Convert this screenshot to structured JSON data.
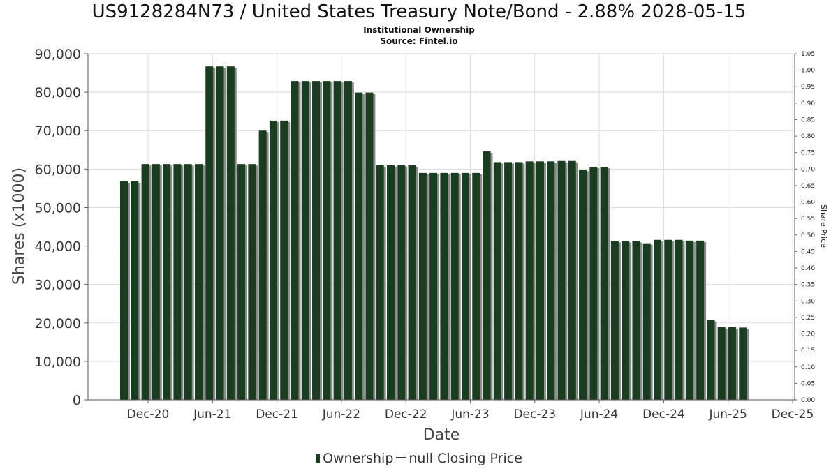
{
  "chart_data": {
    "type": "bar",
    "title": "US9128284N73 / United States Treasury Note/Bond - 2.88% 2028-05-15",
    "subtitle": "Institutional Ownership",
    "source": "Source: Fintel.io",
    "xlabel": "Date",
    "ylabel": "Shares (x1000)",
    "ylabel_right": "Share Price",
    "ylim": [
      0,
      90000
    ],
    "ylim_right": [
      0,
      1.05
    ],
    "y_ticks": [
      "0",
      "10,000",
      "20,000",
      "30,000",
      "40,000",
      "50,000",
      "60,000",
      "70,000",
      "80,000",
      "90,000"
    ],
    "y_right_ticks": [
      "0.00",
      "0.05",
      "0.10",
      "0.15",
      "0.20",
      "0.25",
      "0.30",
      "0.35",
      "0.40",
      "0.45",
      "0.50",
      "0.55",
      "0.60",
      "0.65",
      "0.70",
      "0.75",
      "0.80",
      "0.85",
      "0.90",
      "0.95",
      "1.00",
      "1.05"
    ],
    "x_ticks": [
      "Dec-20",
      "Jun-21",
      "Dec-21",
      "Jun-22",
      "Dec-22",
      "Jun-23",
      "Dec-23",
      "Jun-24",
      "Dec-24",
      "Jun-25",
      "Dec-25"
    ],
    "grid": true,
    "legend_placement": "bottom",
    "series": [
      {
        "name": "Ownership",
        "color": "#1a3d1f",
        "values": [
          56800,
          56800,
          61300,
          61300,
          61300,
          61300,
          61300,
          61300,
          86700,
          86700,
          86700,
          61300,
          61300,
          70000,
          72600,
          72600,
          82900,
          82900,
          82900,
          82900,
          82900,
          82900,
          79900,
          79900,
          61000,
          61000,
          61000,
          61000,
          59000,
          59000,
          59000,
          59000,
          59000,
          59000,
          64600,
          61800,
          61800,
          61800,
          62000,
          62000,
          62000,
          62100,
          62100,
          59800,
          60600,
          60600,
          41300,
          41300,
          41300,
          40700,
          41600,
          41600,
          41600,
          41400,
          41400,
          20800,
          18900,
          18900,
          18800
        ]
      },
      {
        "name": "null Closing Price",
        "color": "#333333",
        "values": []
      }
    ]
  }
}
